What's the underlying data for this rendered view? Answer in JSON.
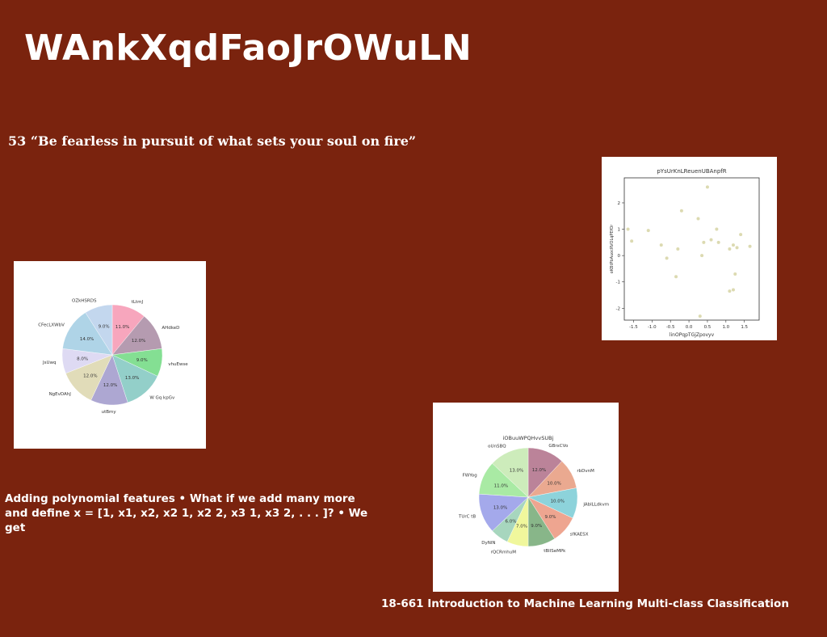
{
  "slide": {
    "title": "WAnkXqdFaoJrOWuLN",
    "quote": "53 “Be fearless in pursuit of what sets your soul on fire”",
    "body_line1": "Adding polynomial features • What if we add many more",
    "body_line2": "and define x = [1, x1, x2, x2 1, x2 2, x3 1, x3 2, . . . ]? • We get",
    "footer": "18-661 Introduction to Machine Learning Multi-class Classification"
  },
  "chart_data": [
    {
      "type": "scatter",
      "title": "pYsUrKnLReuenUBAnpfR",
      "xlabel": "linOPqpTGjZpovyv",
      "ylabel": "oKBtPbAuocRVOLqPEfOr",
      "xlim": [
        -1.75,
        1.9
      ],
      "ylim": [
        -2.45,
        2.95
      ],
      "xticks": [
        "-1.5",
        "-1.0",
        "-0.5",
        "0.0",
        "0.5",
        "1.0",
        "1.5"
      ],
      "xtick_values": [
        -1.5,
        -1.0,
        -0.5,
        0.0,
        0.5,
        1.0,
        1.5
      ],
      "yticks": [
        "2",
        "1",
        "0",
        "-1",
        "-2"
      ],
      "ytick_values": [
        2,
        1,
        0,
        -1,
        -2
      ],
      "point_color": "#d8d6a8",
      "points": [
        {
          "x": -1.65,
          "y": 1.0
        },
        {
          "x": -1.55,
          "y": 0.55
        },
        {
          "x": -1.1,
          "y": 0.95
        },
        {
          "x": -0.75,
          "y": 0.4
        },
        {
          "x": -0.6,
          "y": -0.1
        },
        {
          "x": -0.35,
          "y": -0.8
        },
        {
          "x": -0.3,
          "y": 0.25
        },
        {
          "x": -0.2,
          "y": 1.7
        },
        {
          "x": 0.25,
          "y": 1.4
        },
        {
          "x": 0.3,
          "y": -2.3
        },
        {
          "x": 0.35,
          "y": 0.0
        },
        {
          "x": 0.4,
          "y": 0.5
        },
        {
          "x": 0.5,
          "y": 2.6
        },
        {
          "x": 0.6,
          "y": 0.6
        },
        {
          "x": 0.75,
          "y": 1.0
        },
        {
          "x": 0.8,
          "y": 0.5
        },
        {
          "x": 1.1,
          "y": 0.25
        },
        {
          "x": 1.1,
          "y": -1.35
        },
        {
          "x": 1.2,
          "y": -1.3
        },
        {
          "x": 1.2,
          "y": 0.4
        },
        {
          "x": 1.25,
          "y": -0.7
        },
        {
          "x": 1.3,
          "y": 0.3
        },
        {
          "x": 1.4,
          "y": 0.8
        },
        {
          "x": 1.65,
          "y": 0.35
        }
      ]
    },
    {
      "type": "pie",
      "title": "",
      "slices": [
        {
          "label": "tLtmJ",
          "value": 11.0,
          "pct": "11.0%",
          "color": "#f7a6bd"
        },
        {
          "label": "AHdkeD",
          "value": 12.0,
          "pct": "12.0%",
          "color": "#b59bb0"
        },
        {
          "label": "vhuEwse",
          "value": 9.0,
          "pct": "9.0%",
          "color": "#84df93"
        },
        {
          "label": "W Gq kpGv",
          "value": 13.0,
          "pct": "13.0%",
          "color": "#93cfc9"
        },
        {
          "label": "utBmy",
          "value": 12.0,
          "pct": "12.0%",
          "color": "#ada7d2"
        },
        {
          "label": "NgEvDAhJ",
          "value": 12.0,
          "pct": "12.0%",
          "color": "#e1dcb9"
        },
        {
          "label": "JsUwq",
          "value": 8.0,
          "pct": "8.0%",
          "color": "#dedaf3"
        },
        {
          "label": "CFecLXWbV",
          "value": 14.0,
          "pct": "14.0%",
          "color": "#afd4e7"
        },
        {
          "label": "OZkHSRDS",
          "value": 9.0,
          "pct": "9.0%",
          "color": "#c3d7ee"
        }
      ]
    },
    {
      "type": "pie",
      "title": "iOBuuWPQHvvSUBj",
      "slices": [
        {
          "label": "GBrxCVo",
          "value": 12.0,
          "pct": "12.0%",
          "color": "#bb8399"
        },
        {
          "label": "rbDvnM",
          "value": 10.0,
          "pct": "10.0%",
          "color": "#eaa990"
        },
        {
          "label": "JAblLLdkvm",
          "value": 10.0,
          "pct": "10.0%",
          "color": "#8dd3db"
        },
        {
          "label": "sfKAESX",
          "value": 9.0,
          "pct": "9.0%",
          "color": "#eea590"
        },
        {
          "label": "tBllSeMPk",
          "value": 9.0,
          "pct": "9.0%",
          "color": "#88b689"
        },
        {
          "label": "rQCRmhuM",
          "value": 7.0,
          "pct": "7.0%",
          "color": "#f0f79c"
        },
        {
          "label": "DyNlN",
          "value": 6.0,
          "pct": "6.0%",
          "color": "#a7d6be"
        },
        {
          "label": "TUrC tB",
          "value": 13.0,
          "pct": "13.0%",
          "color": "#a4a9eb"
        },
        {
          "label": "FWYog",
          "value": 11.0,
          "pct": "11.0%",
          "color": "#a9eaa4"
        },
        {
          "label": "oUnSBQ",
          "value": 13.0,
          "pct": "13.0%",
          "color": "#cdecbb"
        }
      ]
    }
  ]
}
